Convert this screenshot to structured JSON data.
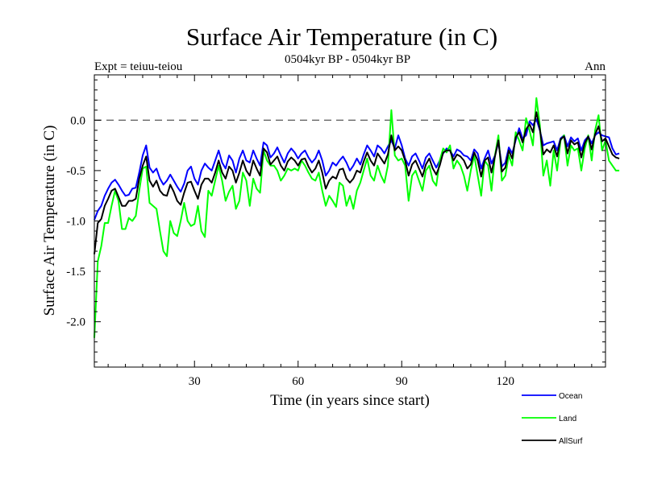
{
  "chart_data": {
    "type": "line",
    "title": "Surface Air Temperature (in C)",
    "subtitle": "0504kyr BP - 0504kyr BP",
    "left_label": "Expt = teiuu-teiou",
    "right_label": "Ann",
    "xlabel": "Time (in years since start)",
    "ylabel": "Surface Air Temperature (in C)",
    "xlim": [
      1,
      149
    ],
    "ylim": [
      -2.45,
      0.45
    ],
    "xticks": [
      30,
      60,
      90,
      120
    ],
    "yticks": [
      0.0,
      -0.5,
      -1.0,
      -1.5,
      -2.0
    ],
    "ytick_labels": [
      "0.0",
      "-0.5",
      "-1.0",
      "-1.5",
      "-2.0"
    ],
    "zero_line": 0.0,
    "x_start": 1,
    "series": [
      {
        "name": "Ocean",
        "color": "#0000ff",
        "values": [
          -0.99,
          -0.9,
          -0.85,
          -0.75,
          -0.68,
          -0.62,
          -0.59,
          -0.64,
          -0.7,
          -0.75,
          -0.74,
          -0.68,
          -0.67,
          -0.52,
          -0.35,
          -0.25,
          -0.47,
          -0.52,
          -0.48,
          -0.58,
          -0.64,
          -0.6,
          -0.54,
          -0.6,
          -0.66,
          -0.71,
          -0.63,
          -0.5,
          -0.46,
          -0.58,
          -0.64,
          -0.5,
          -0.43,
          -0.47,
          -0.5,
          -0.4,
          -0.3,
          -0.42,
          -0.48,
          -0.35,
          -0.4,
          -0.52,
          -0.38,
          -0.3,
          -0.4,
          -0.42,
          -0.3,
          -0.38,
          -0.45,
          -0.22,
          -0.25,
          -0.37,
          -0.33,
          -0.27,
          -0.35,
          -0.42,
          -0.33,
          -0.28,
          -0.32,
          -0.38,
          -0.33,
          -0.3,
          -0.37,
          -0.42,
          -0.38,
          -0.3,
          -0.4,
          -0.55,
          -0.5,
          -0.42,
          -0.45,
          -0.4,
          -0.36,
          -0.42,
          -0.5,
          -0.45,
          -0.38,
          -0.44,
          -0.34,
          -0.25,
          -0.3,
          -0.36,
          -0.25,
          -0.28,
          -0.33,
          -0.26,
          -0.2,
          -0.28,
          -0.15,
          -0.25,
          -0.38,
          -0.45,
          -0.36,
          -0.33,
          -0.4,
          -0.48,
          -0.37,
          -0.33,
          -0.4,
          -0.47,
          -0.4,
          -0.33,
          -0.28,
          -0.3,
          -0.36,
          -0.29,
          -0.31,
          -0.35,
          -0.36,
          -0.4,
          -0.29,
          -0.33,
          -0.48,
          -0.38,
          -0.3,
          -0.43,
          -0.35,
          -0.22,
          -0.46,
          -0.42,
          -0.27,
          -0.33,
          -0.2,
          -0.08,
          -0.18,
          -0.15,
          -0.01,
          -0.05,
          0.01,
          -0.1,
          -0.25,
          -0.23,
          -0.22,
          -0.21,
          -0.3,
          -0.18,
          -0.15,
          -0.26,
          -0.17,
          -0.21,
          -0.18,
          -0.3,
          -0.2,
          -0.16,
          -0.23,
          -0.15,
          -0.12,
          -0.15,
          -0.16,
          -0.17,
          -0.28,
          -0.34,
          -0.33
        ]
      },
      {
        "name": "Land",
        "color": "#00ff00",
        "values": [
          -2.16,
          -1.4,
          -1.25,
          -1.02,
          -1.02,
          -0.85,
          -0.7,
          -0.8,
          -1.08,
          -1.08,
          -0.97,
          -1.0,
          -0.95,
          -0.7,
          -0.48,
          -0.46,
          -0.82,
          -0.85,
          -0.88,
          -1.1,
          -1.3,
          -1.35,
          -1.0,
          -1.12,
          -1.15,
          -1.0,
          -0.82,
          -1.0,
          -1.05,
          -1.03,
          -0.85,
          -1.1,
          -1.16,
          -0.7,
          -0.75,
          -0.6,
          -0.45,
          -0.6,
          -0.8,
          -0.71,
          -0.65,
          -0.88,
          -0.8,
          -0.52,
          -0.6,
          -0.85,
          -0.58,
          -0.68,
          -0.72,
          -0.3,
          -0.4,
          -0.45,
          -0.45,
          -0.5,
          -0.6,
          -0.55,
          -0.48,
          -0.5,
          -0.48,
          -0.5,
          -0.4,
          -0.45,
          -0.52,
          -0.58,
          -0.6,
          -0.52,
          -0.7,
          -0.85,
          -0.75,
          -0.8,
          -0.86,
          -0.62,
          -0.65,
          -0.85,
          -0.75,
          -0.88,
          -0.7,
          -0.62,
          -0.5,
          -0.38,
          -0.55,
          -0.6,
          -0.45,
          -0.55,
          -0.62,
          -0.45,
          0.1,
          -0.35,
          -0.4,
          -0.38,
          -0.45,
          -0.8,
          -0.55,
          -0.5,
          -0.6,
          -0.7,
          -0.5,
          -0.45,
          -0.6,
          -0.65,
          -0.4,
          -0.28,
          -0.32,
          -0.25,
          -0.48,
          -0.4,
          -0.45,
          -0.55,
          -0.7,
          -0.5,
          -0.35,
          -0.55,
          -0.75,
          -0.4,
          -0.45,
          -0.7,
          -0.35,
          -0.15,
          -0.6,
          -0.55,
          -0.35,
          -0.45,
          -0.12,
          -0.2,
          -0.3,
          0.02,
          -0.1,
          -0.25,
          0.22,
          -0.05,
          -0.55,
          -0.4,
          -0.65,
          -0.3,
          -0.5,
          -0.2,
          -0.15,
          -0.45,
          -0.25,
          -0.3,
          -0.28,
          -0.5,
          -0.28,
          -0.15,
          -0.4,
          -0.1,
          0.05,
          -0.3,
          -0.2,
          -0.4,
          -0.45,
          -0.5,
          -0.5
        ]
      },
      {
        "name": "AllSurf",
        "color": "#000000",
        "values": [
          -1.33,
          -1.02,
          -0.98,
          -0.85,
          -0.78,
          -0.7,
          -0.68,
          -0.76,
          -0.85,
          -0.85,
          -0.8,
          -0.8,
          -0.78,
          -0.58,
          -0.45,
          -0.36,
          -0.6,
          -0.66,
          -0.6,
          -0.7,
          -0.74,
          -0.75,
          -0.64,
          -0.71,
          -0.8,
          -0.84,
          -0.72,
          -0.62,
          -0.61,
          -0.7,
          -0.78,
          -0.64,
          -0.58,
          -0.58,
          -0.62,
          -0.52,
          -0.4,
          -0.52,
          -0.58,
          -0.46,
          -0.5,
          -0.62,
          -0.52,
          -0.4,
          -0.5,
          -0.55,
          -0.4,
          -0.48,
          -0.55,
          -0.28,
          -0.32,
          -0.44,
          -0.4,
          -0.36,
          -0.45,
          -0.5,
          -0.41,
          -0.37,
          -0.4,
          -0.45,
          -0.39,
          -0.38,
          -0.46,
          -0.52,
          -0.48,
          -0.4,
          -0.52,
          -0.68,
          -0.6,
          -0.56,
          -0.58,
          -0.49,
          -0.48,
          -0.58,
          -0.62,
          -0.58,
          -0.5,
          -0.52,
          -0.41,
          -0.32,
          -0.4,
          -0.45,
          -0.33,
          -0.38,
          -0.43,
          -0.34,
          -0.15,
          -0.3,
          -0.26,
          -0.3,
          -0.4,
          -0.55,
          -0.44,
          -0.4,
          -0.48,
          -0.56,
          -0.44,
          -0.38,
          -0.48,
          -0.54,
          -0.45,
          -0.32,
          -0.3,
          -0.3,
          -0.4,
          -0.34,
          -0.36,
          -0.4,
          -0.48,
          -0.44,
          -0.32,
          -0.4,
          -0.56,
          -0.4,
          -0.37,
          -0.52,
          -0.36,
          -0.2,
          -0.51,
          -0.47,
          -0.3,
          -0.38,
          -0.17,
          -0.12,
          -0.22,
          -0.09,
          -0.04,
          -0.12,
          0.08,
          -0.09,
          -0.34,
          -0.29,
          -0.32,
          -0.25,
          -0.36,
          -0.19,
          -0.16,
          -0.33,
          -0.2,
          -0.24,
          -0.22,
          -0.37,
          -0.23,
          -0.16,
          -0.29,
          -0.14,
          -0.06,
          -0.21,
          -0.18,
          -0.26,
          -0.34,
          -0.37,
          -0.38
        ]
      }
    ],
    "legend": {
      "placement": "bottom-right",
      "entries": [
        "Ocean",
        "Land",
        "AllSurf"
      ]
    }
  }
}
